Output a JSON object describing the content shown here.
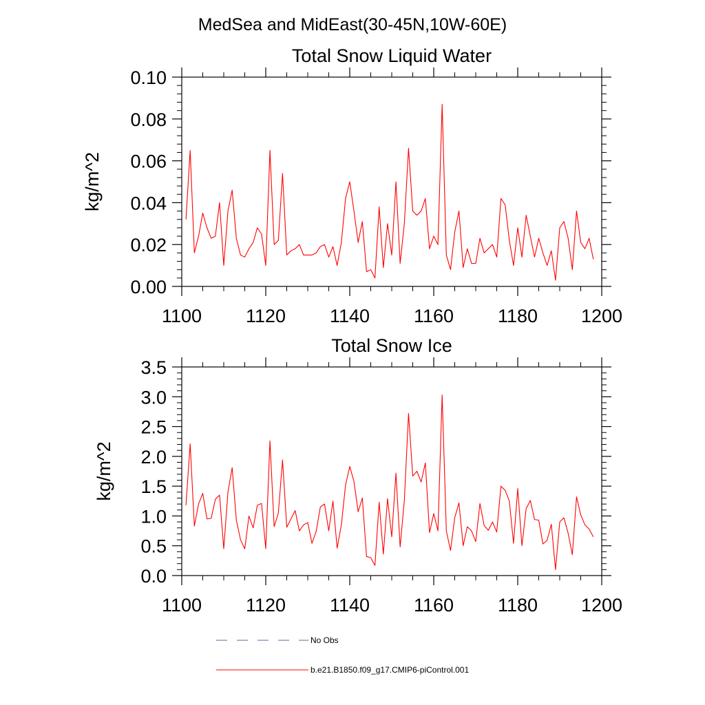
{
  "figure": {
    "title": "MedSea and MidEast(30-45N,10W-60E)",
    "legend": [
      {
        "label": "No Obs",
        "color": "#5a6a9a",
        "style": "dashed"
      },
      {
        "label": "b.e21.B1850.f09_g17.CMIP6-piControl.001",
        "color": "#ff0000",
        "style": "solid"
      }
    ]
  },
  "chart_data": [
    {
      "type": "line",
      "title": "Total Snow Liquid Water",
      "xlabel": "",
      "ylabel": "kg/m^2",
      "xlim": [
        1100,
        1200
      ],
      "ylim": [
        0,
        0.1
      ],
      "xticks": [
        1100,
        1120,
        1140,
        1160,
        1180,
        1200
      ],
      "xtick_labels": [
        "1100",
        "1120",
        "1140",
        "1160",
        "1180",
        "1200"
      ],
      "yticks": [
        0,
        0.02,
        0.04,
        0.06,
        0.08,
        0.1
      ],
      "ytick_labels": [
        "0.00",
        "0.02",
        "0.04",
        "0.06",
        "0.08",
        "0.10"
      ],
      "color": "#ff0000",
      "series": [
        {
          "name": "b.e21.B1850.f09_g17.CMIP6-piControl.001",
          "x_start": 1101,
          "x_step": 1,
          "values": [
            0.032,
            0.065,
            0.016,
            0.024,
            0.035,
            0.028,
            0.023,
            0.024,
            0.04,
            0.01,
            0.036,
            0.046,
            0.023,
            0.015,
            0.014,
            0.018,
            0.021,
            0.028,
            0.025,
            0.01,
            0.065,
            0.02,
            0.022,
            0.054,
            0.015,
            0.017,
            0.018,
            0.02,
            0.015,
            0.015,
            0.015,
            0.016,
            0.019,
            0.02,
            0.014,
            0.019,
            0.01,
            0.021,
            0.042,
            0.05,
            0.036,
            0.021,
            0.031,
            0.007,
            0.008,
            0.004,
            0.038,
            0.009,
            0.03,
            0.015,
            0.05,
            0.011,
            0.03,
            0.066,
            0.036,
            0.034,
            0.036,
            0.042,
            0.018,
            0.024,
            0.02,
            0.087,
            0.015,
            0.008,
            0.026,
            0.036,
            0.009,
            0.018,
            0.011,
            0.011,
            0.023,
            0.016,
            0.018,
            0.02,
            0.014,
            0.042,
            0.039,
            0.022,
            0.01,
            0.028,
            0.014,
            0.034,
            0.024,
            0.014,
            0.023,
            0.016,
            0.01,
            0.017,
            0.003,
            0.028,
            0.031,
            0.023,
            0.008,
            0.036,
            0.021,
            0.018,
            0.023,
            0.013
          ]
        }
      ]
    },
    {
      "type": "line",
      "title": "Total Snow Ice",
      "xlabel": "",
      "ylabel": "kg/m^2",
      "xlim": [
        1100,
        1200
      ],
      "ylim": [
        0,
        3.5
      ],
      "xticks": [
        1100,
        1120,
        1140,
        1160,
        1180,
        1200
      ],
      "xtick_labels": [
        "1100",
        "1120",
        "1140",
        "1160",
        "1180",
        "1200"
      ],
      "yticks": [
        0,
        0.5,
        1.0,
        1.5,
        2.0,
        2.5,
        3.0,
        3.5
      ],
      "ytick_labels": [
        "0.0",
        "0.5",
        "1.0",
        "1.5",
        "2.0",
        "2.5",
        "3.0",
        "3.5"
      ],
      "color": "#ff0000",
      "series": [
        {
          "name": "b.e21.B1850.f09_g17.CMIP6-piControl.001",
          "x_start": 1101,
          "x_step": 1,
          "values": [
            1.18,
            2.21,
            0.83,
            1.2,
            1.38,
            0.95,
            0.96,
            1.28,
            1.35,
            0.45,
            1.4,
            1.81,
            0.93,
            0.6,
            0.45,
            1.0,
            0.8,
            1.18,
            1.21,
            0.45,
            2.26,
            0.82,
            1.05,
            1.94,
            0.81,
            0.95,
            1.09,
            0.75,
            0.85,
            0.89,
            0.54,
            0.74,
            1.15,
            1.2,
            0.75,
            1.25,
            0.46,
            0.85,
            1.52,
            1.83,
            1.58,
            1.07,
            1.3,
            0.32,
            0.3,
            0.17,
            1.23,
            0.36,
            1.29,
            0.65,
            1.72,
            0.48,
            1.26,
            2.72,
            1.67,
            1.75,
            1.57,
            1.89,
            0.72,
            1.04,
            0.75,
            3.03,
            0.75,
            0.42,
            0.97,
            1.22,
            0.5,
            0.82,
            0.75,
            0.57,
            1.21,
            0.84,
            0.76,
            0.9,
            0.73,
            1.5,
            1.43,
            1.25,
            0.54,
            1.46,
            0.5,
            1.12,
            1.26,
            0.94,
            0.93,
            0.53,
            0.59,
            0.86,
            0.1,
            0.9,
            0.97,
            0.71,
            0.35,
            1.32,
            1.02,
            0.85,
            0.78,
            0.65
          ]
        }
      ]
    }
  ]
}
